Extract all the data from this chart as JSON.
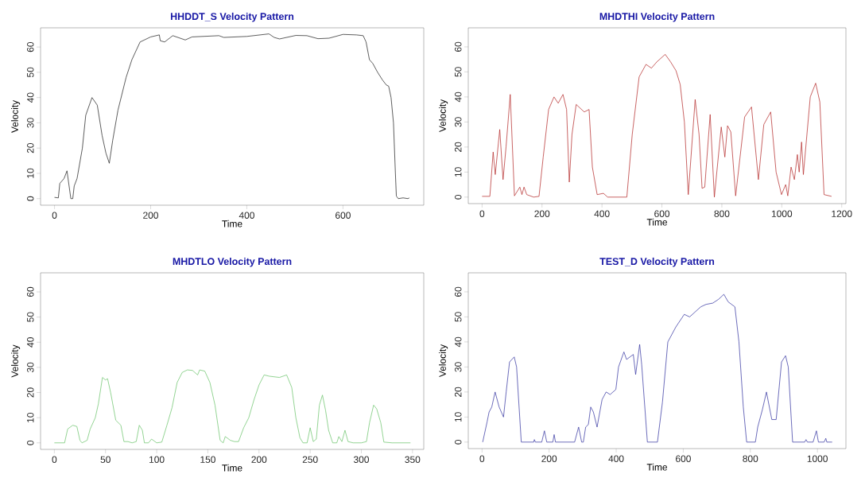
{
  "chart_data": [
    {
      "type": "line",
      "title": "HHDDT_S Velocity Pattern",
      "xlabel": "Time",
      "ylabel": "Velocity",
      "color": "#1a1a1a",
      "xlim": [
        -29,
        768
      ],
      "ylim": [
        -2.6,
        67.6
      ],
      "xticks": [
        0,
        200,
        400,
        600
      ],
      "yticks": [
        0,
        10,
        20,
        30,
        40,
        50,
        60
      ],
      "x": [
        0,
        8,
        11,
        20,
        26,
        34,
        38,
        41,
        47,
        58,
        65,
        78,
        89,
        99,
        107,
        114,
        121,
        132,
        149,
        161,
        178,
        200,
        218,
        220,
        229,
        246,
        272,
        286,
        342,
        352,
        400,
        446,
        457,
        468,
        502,
        525,
        548,
        571,
        600,
        628,
        642,
        648,
        655,
        662,
        672,
        682,
        690,
        695,
        700,
        705,
        709,
        711,
        715,
        725,
        735,
        738
      ],
      "values": [
        0.5,
        0.3,
        6,
        8,
        11,
        0,
        0,
        5,
        8,
        20,
        33,
        40,
        37,
        25,
        18,
        14,
        23,
        35,
        48,
        55,
        62,
        64,
        64.8,
        62.5,
        62,
        64.5,
        62.8,
        64,
        64.5,
        63.8,
        64.2,
        65.2,
        63.8,
        63.2,
        64.6,
        64.5,
        63.3,
        63.5,
        65,
        64.8,
        64.5,
        62,
        55,
        53.5,
        50,
        47,
        45,
        44.5,
        40,
        30,
        10,
        1,
        0,
        0.3,
        0,
        0.3
      ]
    },
    {
      "type": "line",
      "title": "MHDTHI Velocity Pattern",
      "xlabel": "Time",
      "ylabel": "Velocity",
      "color": "#b22222",
      "xlim": [
        -46,
        1214
      ],
      "ylim": [
        -2.6,
        67.6
      ],
      "xticks": [
        0,
        200,
        400,
        600,
        800,
        1000,
        1200
      ],
      "yticks": [
        0,
        10,
        20,
        30,
        40,
        50,
        60
      ],
      "x": [
        0,
        26,
        37,
        44,
        59,
        70,
        80,
        94,
        108,
        126,
        133,
        140,
        149,
        172,
        190,
        204,
        222,
        240,
        254,
        270,
        282,
        291,
        300,
        314,
        341,
        357,
        368,
        384,
        405,
        419,
        483,
        501,
        524,
        547,
        565,
        583,
        611,
        629,
        647,
        661,
        675,
        688,
        711,
        724,
        734,
        743,
        761,
        775,
        798,
        810,
        819,
        830,
        846,
        876,
        899,
        922,
        940,
        963,
        981,
        999,
        1013,
        1020,
        1031,
        1042,
        1052,
        1058,
        1066,
        1072,
        1095,
        1113,
        1127,
        1141,
        1166
      ],
      "values": [
        0.3,
        0.3,
        18,
        9,
        27,
        7,
        20,
        41,
        0.5,
        4,
        1,
        4,
        1,
        0,
        0.3,
        16,
        35,
        40,
        37.5,
        41,
        35,
        6,
        25,
        37,
        34,
        35,
        12,
        1,
        1.5,
        0,
        0,
        25,
        48,
        53,
        51.5,
        54,
        57,
        54,
        50.5,
        45,
        30,
        1,
        39,
        25,
        3.5,
        4,
        33,
        0,
        28,
        16,
        28.5,
        26,
        0.5,
        32,
        36,
        7,
        29,
        34,
        10,
        1,
        5,
        0.5,
        12,
        7,
        17,
        10,
        22,
        9,
        40,
        45.5,
        38,
        1,
        0.3
      ]
    },
    {
      "type": "line",
      "title": "MHDTLO Velocity Pattern",
      "xlabel": "Time",
      "ylabel": "Velocity",
      "color": "#66c266",
      "xlim": [
        -13.5,
        361
      ],
      "ylim": [
        -2.6,
        67.6
      ],
      "xticks": [
        0,
        50,
        100,
        150,
        200,
        250,
        300,
        350
      ],
      "yticks": [
        0,
        10,
        20,
        30,
        40,
        50,
        60
      ],
      "x": [
        0,
        10,
        13,
        18,
        22,
        25,
        27,
        32,
        35,
        40,
        43,
        47,
        50,
        52,
        55,
        60,
        65,
        68,
        72,
        76,
        80,
        83,
        86,
        88,
        92,
        95,
        100,
        105,
        110,
        115,
        120,
        125,
        130,
        135,
        140,
        142,
        147,
        152,
        157,
        162,
        165,
        167,
        172,
        176,
        180,
        185,
        190,
        195,
        200,
        205,
        210,
        220,
        227,
        232,
        236,
        240,
        243,
        247,
        250,
        253,
        256,
        259,
        262,
        265,
        268,
        272,
        276,
        278,
        281,
        284,
        287,
        292,
        300,
        305,
        308,
        312,
        315,
        319,
        322,
        330,
        348
      ],
      "values": [
        0,
        0,
        5.5,
        7,
        6.5,
        1,
        0,
        1,
        5.5,
        10,
        15.5,
        26,
        25,
        25.5,
        20,
        9,
        7,
        0.5,
        0.5,
        0,
        0.5,
        7,
        5,
        0,
        0,
        1.5,
        0,
        0.3,
        7,
        14,
        24,
        28,
        29,
        28.8,
        27,
        29,
        28.5,
        24,
        15,
        1,
        0,
        2.5,
        1,
        0.5,
        0.5,
        6,
        10,
        17,
        23,
        27,
        26.5,
        26,
        27,
        22,
        10,
        2,
        0,
        0,
        6,
        0.5,
        1.5,
        15,
        19,
        13,
        5,
        0,
        0,
        2.5,
        0.5,
        5,
        0.5,
        0,
        0,
        0.5,
        8,
        15,
        13.5,
        8,
        0.3,
        0,
        0
      ]
    },
    {
      "type": "line",
      "title": "TEST_D Velocity Pattern",
      "xlabel": "Time",
      "ylabel": "Velocity",
      "color": "#2e2e9e",
      "xlim": [
        -41,
        1085
      ],
      "ylim": [
        -2.6,
        67.6
      ],
      "xticks": [
        0,
        200,
        400,
        600,
        800,
        1000
      ],
      "yticks": [
        0,
        10,
        20,
        30,
        40,
        50,
        60
      ],
      "x": [
        2,
        15,
        21,
        29,
        39,
        51,
        64,
        72,
        82,
        96,
        103,
        117,
        154,
        156,
        159,
        178,
        186,
        193,
        211,
        215,
        219,
        276,
        288,
        297,
        302,
        309,
        317,
        324,
        332,
        343,
        358,
        370,
        382,
        399,
        407,
        423,
        431,
        451,
        458,
        470,
        476,
        493,
        523,
        538,
        554,
        578,
        603,
        619,
        652,
        668,
        688,
        705,
        721,
        734,
        754,
        766,
        779,
        789,
        815,
        822,
        836,
        848,
        864,
        877,
        893,
        905,
        913,
        926,
        962,
        966,
        970,
        987,
        997,
        1003,
        1020,
        1025,
        1028,
        1044
      ],
      "values": [
        0,
        8,
        12,
        14,
        20,
        14,
        10,
        20,
        32,
        34,
        30,
        0,
        0,
        1,
        0,
        0,
        4.5,
        0,
        0,
        3,
        0,
        0,
        6,
        0,
        0,
        6,
        7,
        14,
        12,
        6,
        17,
        20,
        19,
        21,
        30,
        36,
        33,
        35,
        27,
        39,
        31,
        0,
        0,
        16,
        40,
        46,
        51,
        50,
        54,
        55,
        55.5,
        57,
        59,
        56,
        54,
        40,
        14,
        0,
        0,
        6,
        13,
        20,
        9,
        9,
        32,
        34.5,
        30,
        0,
        0,
        1,
        0,
        0,
        4.5,
        0,
        0,
        1.5,
        0,
        0
      ]
    }
  ]
}
